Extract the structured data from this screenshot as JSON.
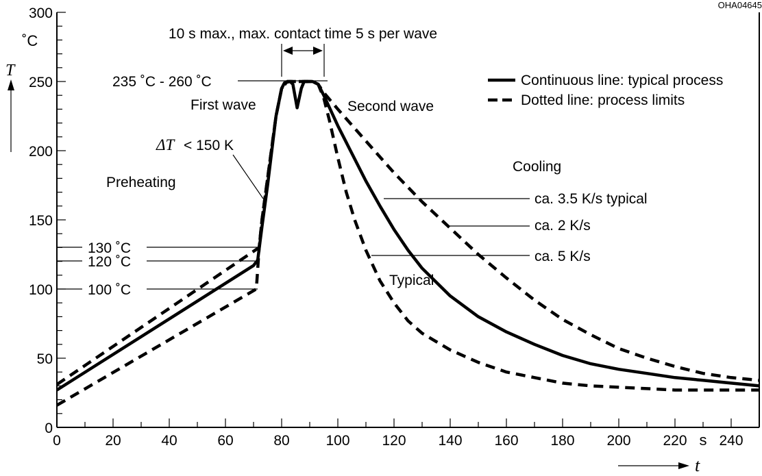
{
  "chart_data": {
    "type": "line",
    "ref_code": "OHA04645",
    "x_axis": {
      "range": [
        0,
        250
      ],
      "ticks": [
        0,
        20,
        40,
        60,
        80,
        100,
        120,
        140,
        160,
        180,
        200,
        220,
        240
      ],
      "unit_label": "s",
      "unit_label_x": 230,
      "symbol": "t"
    },
    "y_axis": {
      "range": [
        0,
        300
      ],
      "ticks": [
        0,
        50,
        100,
        150,
        200,
        250,
        300
      ],
      "unit_label": "˚C",
      "symbol": "T"
    },
    "legend": {
      "position": "top-right",
      "entries": [
        {
          "style": "solid",
          "label": "Continuous line: typical process"
        },
        {
          "style": "dashed",
          "label": "Dotted line: process limits"
        }
      ]
    },
    "series": [
      {
        "style": "solid",
        "points": [
          [
            0,
            27
          ],
          [
            70,
            117
          ],
          [
            71.5,
            121
          ],
          [
            73,
            145
          ],
          [
            75,
            175
          ],
          [
            78,
            225
          ],
          [
            80,
            245
          ],
          [
            81,
            249
          ],
          [
            83,
            250
          ],
          [
            84,
            248
          ],
          [
            85.5,
            231
          ],
          [
            87,
            245
          ],
          [
            88,
            250
          ],
          [
            91,
            250
          ],
          [
            93,
            248
          ],
          [
            95,
            240
          ],
          [
            100,
            218
          ],
          [
            105,
            198
          ],
          [
            110,
            178
          ],
          [
            115,
            160
          ],
          [
            120,
            143
          ],
          [
            125,
            128
          ],
          [
            130,
            115
          ],
          [
            140,
            95
          ],
          [
            150,
            80
          ],
          [
            160,
            69
          ],
          [
            170,
            60
          ],
          [
            180,
            52
          ],
          [
            190,
            46
          ],
          [
            200,
            42
          ],
          [
            210,
            39
          ],
          [
            220,
            36
          ],
          [
            230,
            34
          ],
          [
            240,
            32
          ],
          [
            250,
            30
          ]
        ]
      },
      {
        "style": "dashed",
        "points": [
          [
            0,
            31
          ],
          [
            72,
            130
          ],
          [
            73,
            150
          ],
          [
            75,
            180
          ],
          [
            78,
            225
          ],
          [
            80,
            245
          ],
          [
            82,
            250
          ],
          [
            84,
            250
          ],
          [
            86,
            250
          ],
          [
            88,
            250
          ],
          [
            91,
            250
          ],
          [
            93,
            248
          ],
          [
            95,
            242
          ],
          [
            100,
            230
          ],
          [
            110,
            207
          ],
          [
            120,
            184
          ],
          [
            130,
            163
          ],
          [
            140,
            144
          ],
          [
            150,
            125
          ],
          [
            160,
            108
          ],
          [
            170,
            92
          ],
          [
            180,
            78
          ],
          [
            190,
            67
          ],
          [
            200,
            57
          ],
          [
            210,
            50
          ],
          [
            220,
            44
          ],
          [
            230,
            39
          ],
          [
            240,
            36
          ],
          [
            250,
            34
          ]
        ]
      },
      {
        "style": "dashed",
        "points": [
          [
            0,
            16
          ],
          [
            71,
            100
          ],
          [
            72,
            130
          ],
          [
            73,
            150
          ],
          [
            75,
            180
          ],
          [
            78,
            225
          ],
          [
            80,
            245
          ],
          [
            82,
            250
          ],
          [
            84,
            250
          ],
          [
            86,
            250
          ],
          [
            88,
            250
          ],
          [
            91,
            250
          ],
          [
            93,
            248
          ],
          [
            95,
            238
          ],
          [
            97,
            222
          ],
          [
            100,
            195
          ],
          [
            103,
            170
          ],
          [
            106,
            150
          ],
          [
            110,
            128
          ],
          [
            115,
            106
          ],
          [
            120,
            90
          ],
          [
            125,
            77
          ],
          [
            130,
            68
          ],
          [
            140,
            56
          ],
          [
            150,
            47
          ],
          [
            160,
            40
          ],
          [
            170,
            36
          ],
          [
            180,
            32
          ],
          [
            190,
            30
          ],
          [
            200,
            29
          ],
          [
            210,
            28
          ],
          [
            220,
            27
          ],
          [
            230,
            27
          ],
          [
            240,
            27
          ],
          [
            250,
            27
          ]
        ]
      }
    ],
    "annotations": {
      "max_time": "10 s max., max. contact time 5 s per wave",
      "peak": "235 ˚C - 260 ˚C",
      "first_wave": "First wave",
      "second_wave": "Second wave",
      "delta_t": "< 150 K",
      "preheating": "Preheating",
      "cooling": "Cooling",
      "rate_typical": "ca. 3.5 K/s typical",
      "rate_2": "ca. 2 K/s",
      "rate_5": "ca. 5 K/s",
      "typical": "Typical",
      "level_130": "130 ˚C",
      "level_120": "120 ˚C",
      "level_100": "100 ˚C"
    }
  }
}
